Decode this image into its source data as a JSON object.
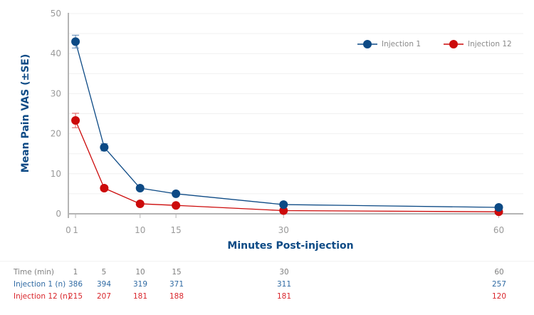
{
  "chart_data": {
    "type": "line",
    "title": "",
    "xlabel": "Minutes Post-injection",
    "ylabel": "Mean Pain VAS (±SE)",
    "x": [
      1,
      5,
      10,
      15,
      30,
      60
    ],
    "xticks": [
      0,
      1,
      10,
      15,
      30,
      60
    ],
    "yticks": [
      0,
      10,
      20,
      30,
      40,
      50
    ],
    "xlim": [
      0,
      63
    ],
    "ylim": [
      0,
      50
    ],
    "grid": "horizontal, every 5 units, faint",
    "legend_position": "top-right",
    "series": [
      {
        "name": "Injection 1",
        "color": "#0d4a85",
        "values": [
          43.0,
          16.6,
          6.4,
          5.0,
          2.3,
          1.6
        ],
        "se": [
          1.6,
          0.9,
          0.4,
          0.3,
          0.2,
          0.2
        ]
      },
      {
        "name": "Injection 12",
        "color": "#cc0a0a",
        "values": [
          23.3,
          6.4,
          2.5,
          2.1,
          0.8,
          0.5
        ],
        "se": [
          1.8,
          0.6,
          0.3,
          0.3,
          0.2,
          0.2
        ]
      }
    ]
  },
  "axis": {
    "y_title": "Mean Pain VAS (±SE)",
    "x_title": "Minutes Post-injection"
  },
  "legend": [
    {
      "label": "Injection 1",
      "color": "#0d4a85"
    },
    {
      "label": "Injection 12",
      "color": "#cc0a0a"
    }
  ],
  "table": {
    "time_label": "Time (min)",
    "times": [
      "1",
      "5",
      "10",
      "15",
      "30",
      "60"
    ],
    "rows": [
      {
        "label": "Injection 1 (n)",
        "values": [
          "386",
          "394",
          "319",
          "371",
          "311",
          "257"
        ]
      },
      {
        "label": "Injection 12 (n)",
        "values": [
          "215",
          "207",
          "181",
          "188",
          "181",
          "120"
        ]
      }
    ]
  },
  "colors": {
    "inj1": "#0d4a85",
    "inj12": "#cc0a0a",
    "axis": "#b5b5b5",
    "tick_label": "#9a9a9a",
    "grid": "#f0f0f0"
  }
}
